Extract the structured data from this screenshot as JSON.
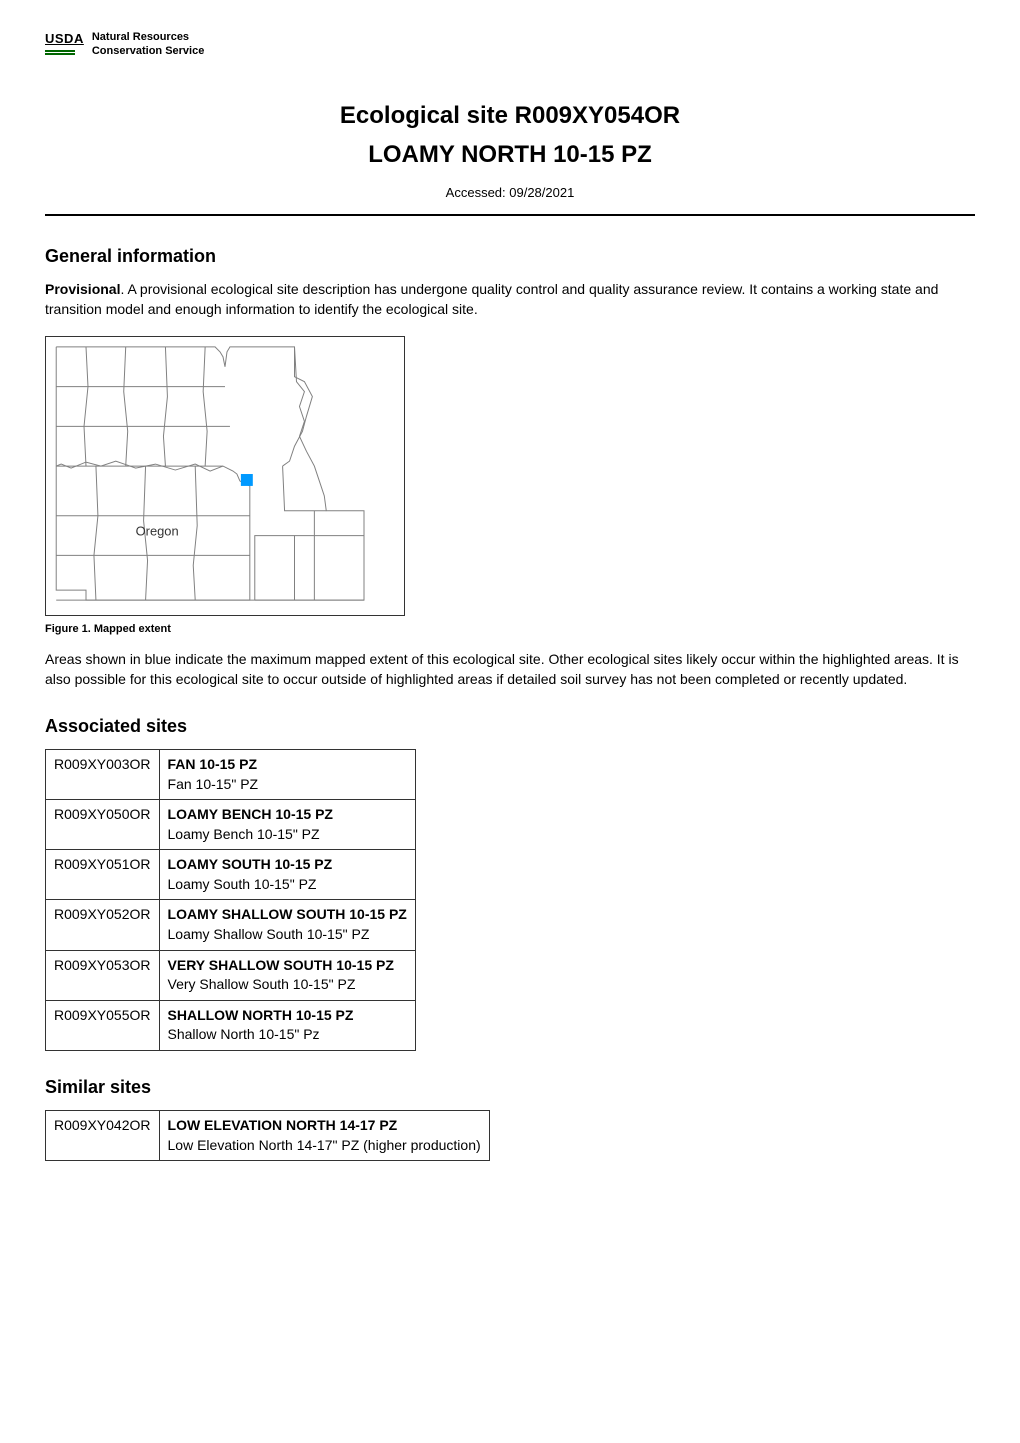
{
  "header": {
    "usda_label": "USDA",
    "service_line1": "Natural Resources",
    "service_line2": "Conservation Service"
  },
  "title": {
    "main": "Ecological site R009XY054OR",
    "sub": "LOAMY NORTH 10-15 PZ"
  },
  "accessed": "Accessed: 09/28/2021",
  "general_info": {
    "heading": "General information",
    "provisional_label": "Provisional",
    "provisional_text": ". A provisional ecological site description has undergone quality control and quality assurance review. It contains a working state and transition model and enough information to identify the ecological site."
  },
  "figure": {
    "caption": "Figure 1. Mapped extent",
    "oregon_label": "Oregon",
    "highlight_color": "#0099ff",
    "border_color": "#333333",
    "line_color": "#808080",
    "extent_text": "Areas shown in blue indicate the maximum mapped extent of this ecological site. Other ecological sites likely occur within the highlighted areas. It is also possible for this ecological site to occur outside of highlighted areas if detailed soil survey has not been completed or recently updated."
  },
  "associated_sites": {
    "heading": "Associated sites",
    "rows": [
      {
        "code": "R009XY003OR",
        "name": "FAN 10-15 PZ",
        "desc": "Fan 10-15\" PZ"
      },
      {
        "code": "R009XY050OR",
        "name": "LOAMY BENCH 10-15 PZ",
        "desc": "Loamy Bench 10-15\" PZ"
      },
      {
        "code": "R009XY051OR",
        "name": "LOAMY SOUTH 10-15 PZ",
        "desc": "Loamy South 10-15\" PZ"
      },
      {
        "code": "R009XY052OR",
        "name": "LOAMY SHALLOW SOUTH 10-15 PZ",
        "desc": "Loamy Shallow South 10-15\" PZ"
      },
      {
        "code": "R009XY053OR",
        "name": "VERY SHALLOW SOUTH 10-15 PZ",
        "desc": "Very Shallow South 10-15\" PZ"
      },
      {
        "code": "R009XY055OR",
        "name": "SHALLOW NORTH 10-15 PZ",
        "desc": "Shallow North 10-15\" Pz"
      }
    ]
  },
  "similar_sites": {
    "heading": "Similar sites",
    "rows": [
      {
        "code": "R009XY042OR",
        "name": "LOW ELEVATION NORTH 14-17 PZ",
        "desc": "Low Elevation North 14-17\" PZ (higher production)"
      }
    ]
  },
  "styling": {
    "body_font_size": 14,
    "heading_font_size": 18,
    "title_font_size": 24,
    "caption_font_size": 11,
    "background_color": "#ffffff",
    "text_color": "#000000",
    "divider_color": "#000000",
    "table_border_color": "#333333",
    "usda_bar_color": "#006600"
  }
}
